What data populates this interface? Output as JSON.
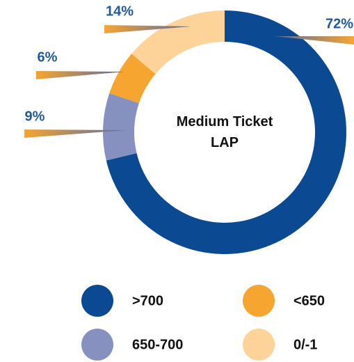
{
  "chart_data": {
    "type": "donut",
    "title": "Medium Ticket LAP",
    "categories": [
      ">700",
      "650-700",
      "<650",
      "0/-1"
    ],
    "values": [
      72,
      9,
      6,
      14
    ],
    "value_labels": [
      "72%",
      "9%",
      "6%",
      "14%"
    ],
    "colors": [
      "#0b4a92",
      "#8791c0",
      "#f6a531",
      "#fdd39a"
    ]
  }
}
